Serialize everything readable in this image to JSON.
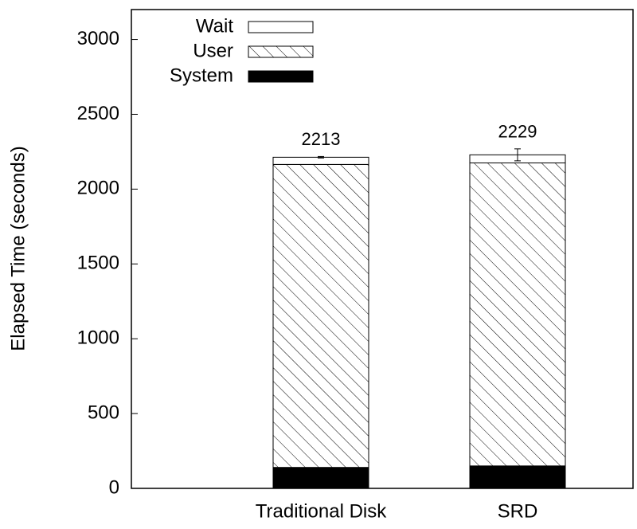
{
  "chart_data": {
    "type": "stacked_bar",
    "y_label": "Elapsed Time (seconds)",
    "categories": [
      "Traditional Disk",
      "SRD"
    ],
    "series": [
      {
        "name": "System",
        "color": "#000000",
        "hatch": false,
        "values": [
          140,
          150
        ]
      },
      {
        "name": "User",
        "color": "#ffffff",
        "hatch": true,
        "values": [
          2025,
          2025
        ]
      },
      {
        "name": "Wait",
        "color": "#ffffff",
        "hatch": false,
        "values": [
          48,
          54
        ]
      }
    ],
    "totals": [
      2213,
      2229
    ],
    "errors": [
      5,
      40
    ],
    "ylim": [
      0,
      3200
    ],
    "yticks": [
      0,
      500,
      1000,
      1500,
      2000,
      2500,
      3000
    ],
    "grid": false
  }
}
